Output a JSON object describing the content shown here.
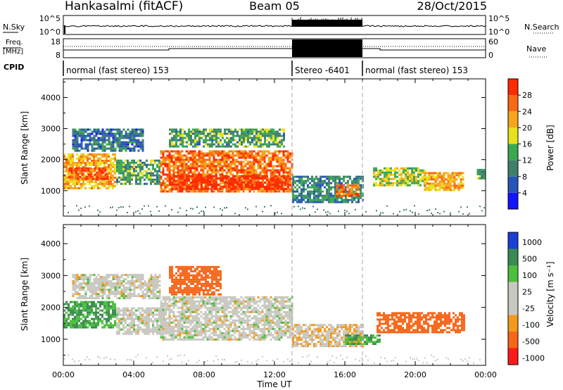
{
  "header": {
    "station": "Hankasalmi (fitACF)",
    "beam": "Beam 05",
    "date": "28/Oct/2015"
  },
  "strip_labels": {
    "nsky": "N.Sky",
    "freq_top": "Freq.",
    "freq_unit": "[MHz]",
    "cpid": "CPID",
    "nsearch": "N.Search",
    "nave": "Nave"
  },
  "strip_ticks": {
    "nsky_top": "10^5",
    "nsky_bottom": "10^0",
    "nsearch_top": "10^5",
    "nsearch_bottom": "10^0",
    "freq_top": "18",
    "freq_bottom": "8",
    "nave_top": "60",
    "nave_bottom": "0"
  },
  "cpid_segments": [
    {
      "label": "normal (fast stereo) 153",
      "start_hour": 0,
      "end_hour": 13
    },
    {
      "label": "Stereo -6401",
      "start_hour": 13,
      "end_hour": 17
    },
    {
      "label": "normal (fast stereo) 153",
      "start_hour": 17,
      "end_hour": 24
    }
  ],
  "x_axis": {
    "label": "Time UT",
    "ticks": [
      "00:00",
      "04:00",
      "08:00",
      "12:00",
      "16:00",
      "20:00",
      "00:00"
    ]
  },
  "panels": {
    "power": {
      "ylabel": "Slant Range [km]",
      "yticks": [
        "1000",
        "2000",
        "3000",
        "4000"
      ],
      "colorbar_label": "Power [dB]",
      "colorbar_ticks": [
        "4",
        "8",
        "12",
        "16",
        "20",
        "24",
        "28"
      ]
    },
    "velocity": {
      "ylabel": "Slant Range [km]",
      "yticks": [
        "1000",
        "2000",
        "3000",
        "4000"
      ],
      "colorbar_label": "Velocity [m s⁻¹]",
      "colorbar_ticks": [
        "1000",
        "500",
        "100",
        "25",
        "-25",
        "-100",
        "-500",
        "-1000"
      ]
    }
  },
  "colors": {
    "power_scale": [
      "#1414ff",
      "#2a55b8",
      "#3f7f6e",
      "#3aa850",
      "#e7e21c",
      "#f7a51a",
      "#f86a14",
      "#ff2a00"
    ],
    "velocity_scale": [
      "#1b3fd4",
      "#3b8a52",
      "#4cbf3c",
      "#c8c8c0",
      "#c8c8c0",
      "#f39a1c",
      "#f7661a",
      "#ff1a1a"
    ],
    "stereo_bg": "#000000"
  },
  "chart_data": [
    {
      "type": "heatmap",
      "title": "",
      "xlabel": "Time UT",
      "ylabel": "Slant Range [km]",
      "xlim": [
        0,
        24
      ],
      "ylim": [
        180,
        4600
      ],
      "z_label": "Power [dB]",
      "z_range": [
        0,
        30
      ],
      "regions": [
        {
          "t0": 0.0,
          "t1": 3.0,
          "r0": 1050,
          "r1": 2200,
          "z": 20
        },
        {
          "t0": 0.3,
          "t1": 2.5,
          "r0": 1350,
          "r1": 1750,
          "z": 27
        },
        {
          "t0": 3.0,
          "t1": 5.5,
          "r0": 1200,
          "r1": 2000,
          "z": 12
        },
        {
          "t0": 0.5,
          "t1": 4.5,
          "r0": 2300,
          "r1": 3000,
          "z": 8
        },
        {
          "t0": 5.5,
          "t1": 13.0,
          "r0": 1000,
          "r1": 2300,
          "z": 24
        },
        {
          "t0": 6.0,
          "t1": 12.8,
          "r0": 1050,
          "r1": 1500,
          "z": 29
        },
        {
          "t0": 6.0,
          "t1": 12.5,
          "r0": 2400,
          "r1": 3000,
          "z": 12
        },
        {
          "t0": 13.0,
          "t1": 17.0,
          "r0": 650,
          "r1": 1480,
          "z": 10
        },
        {
          "t0": 15.5,
          "t1": 16.8,
          "r0": 850,
          "r1": 1200,
          "z": 24
        },
        {
          "t0": 17.6,
          "t1": 20.5,
          "r0": 1150,
          "r1": 1750,
          "z": 16
        },
        {
          "t0": 20.5,
          "t1": 22.7,
          "r0": 1050,
          "r1": 1600,
          "z": 20
        },
        {
          "t0": 23.5,
          "t1": 24.0,
          "r0": 1400,
          "r1": 1700,
          "z": 12
        }
      ]
    },
    {
      "type": "heatmap",
      "title": "",
      "xlabel": "Time UT",
      "ylabel": "Slant Range [km]",
      "xlim": [
        0,
        24
      ],
      "ylim": [
        180,
        4600
      ],
      "z_label": "Velocity [m s⁻¹]",
      "z_range": [
        -1000,
        1000
      ],
      "regions": [
        {
          "t0": 0.0,
          "t1": 3.0,
          "r0": 1350,
          "r1": 2200,
          "z": 100
        },
        {
          "t0": 0.5,
          "t1": 5.5,
          "r0": 2300,
          "r1": 3050,
          "z": 0
        },
        {
          "t0": 3.0,
          "t1": 5.8,
          "r0": 1150,
          "r1": 2000,
          "z": 0
        },
        {
          "t0": 5.5,
          "t1": 13.0,
          "r0": 1000,
          "r1": 2350,
          "z": 0
        },
        {
          "t0": 6.0,
          "t1": 9.0,
          "r0": 2400,
          "r1": 3300,
          "z": -300
        },
        {
          "t0": 13.0,
          "t1": 17.0,
          "r0": 800,
          "r1": 1480,
          "z": -20
        },
        {
          "t0": 16.0,
          "t1": 18.0,
          "r0": 850,
          "r1": 1150,
          "z": 100
        },
        {
          "t0": 17.8,
          "t1": 22.8,
          "r0": 1200,
          "r1": 1850,
          "z": -300
        }
      ]
    }
  ]
}
